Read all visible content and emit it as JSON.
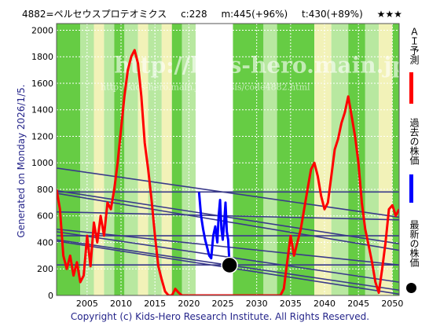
{
  "header": {
    "ticker": "4882=ペルセウスプロテオミクス",
    "current": "c:228",
    "max_forecast": "m:445(+96%)",
    "target": "t:430(+89%)",
    "stars": "★★★"
  },
  "side_label": "Generated on Monday 2026/1/5.",
  "watermark": {
    "url_big": "http://kids-hero.main.jp/",
    "url_small": "http://kids-hero.main.jp/analysis/code4882.html"
  },
  "footer": "Copyright (c) Kids-Hero Research Institute. All Rights Reserved.",
  "legend": {
    "ai_forecast": "ＡＩ予測",
    "past_price": "過去の株価",
    "latest_price": "最新の株価"
  },
  "colors": {
    "ai_forecast": "#ff0000",
    "past_price": "#0000ff",
    "latest_price": "#000000",
    "trend_lines": "#3a3a8a",
    "band_green": "#66cc44",
    "band_light_green": "#b8e8a0",
    "band_yellow": "#f2f2b8",
    "band_white": "#ffffff"
  },
  "chart_data": {
    "type": "line",
    "title": "",
    "xlabel": "",
    "ylabel": "",
    "xlim": [
      2000.5,
      2051
    ],
    "ylim": [
      0,
      2050
    ],
    "x_ticks": [
      2005,
      2010,
      2015,
      2020,
      2025,
      2030,
      2035,
      2040,
      2045,
      2050
    ],
    "y_ticks": [
      0,
      200,
      400,
      600,
      800,
      1000,
      1200,
      1400,
      1600,
      1800,
      2000
    ],
    "grid": true,
    "series": [
      {
        "role": "ai_forecast",
        "points": [
          [
            2000.5,
            800
          ],
          [
            2001,
            650
          ],
          [
            2001.5,
            300
          ],
          [
            2002,
            200
          ],
          [
            2002.5,
            300
          ],
          [
            2003,
            150
          ],
          [
            2003.5,
            250
          ],
          [
            2004,
            100
          ],
          [
            2004.5,
            150
          ],
          [
            2005,
            450
          ],
          [
            2005.5,
            220
          ],
          [
            2006,
            550
          ],
          [
            2006.5,
            400
          ],
          [
            2007,
            600
          ],
          [
            2007.5,
            450
          ],
          [
            2008,
            700
          ],
          [
            2008.5,
            650
          ],
          [
            2009,
            800
          ],
          [
            2009.5,
            1000
          ],
          [
            2010,
            1250
          ],
          [
            2010.5,
            1500
          ],
          [
            2011,
            1700
          ],
          [
            2011.5,
            1800
          ],
          [
            2012,
            1850
          ],
          [
            2012.5,
            1750
          ],
          [
            2013,
            1500
          ],
          [
            2013.5,
            1150
          ],
          [
            2014,
            950
          ],
          [
            2014.5,
            720
          ],
          [
            2015,
            450
          ],
          [
            2015.5,
            220
          ],
          [
            2016,
            120
          ],
          [
            2016.5,
            30
          ],
          [
            2017,
            0
          ],
          [
            2017.5,
            0
          ],
          [
            2018,
            50
          ],
          [
            2018.5,
            20
          ],
          [
            2019,
            0
          ],
          [
            2019.5,
            0
          ],
          [
            2020,
            0
          ],
          [
            2020.5,
            0
          ],
          [
            2021,
            0
          ],
          [
            2021.5,
            0
          ],
          [
            2022,
            0
          ],
          [
            2022.5,
            0
          ],
          [
            2023,
            0
          ],
          [
            2023.5,
            0
          ],
          [
            2024,
            0
          ],
          [
            2024.5,
            0
          ],
          [
            2025,
            0
          ],
          [
            2025.5,
            0
          ],
          [
            2026,
            0
          ],
          [
            2026.5,
            0
          ],
          [
            2027,
            0
          ],
          [
            2027.5,
            0
          ],
          [
            2028,
            0
          ],
          [
            2028.5,
            0
          ],
          [
            2029,
            0
          ],
          [
            2029.5,
            0
          ],
          [
            2030,
            0
          ],
          [
            2030.5,
            0
          ],
          [
            2031,
            0
          ],
          [
            2031.5,
            0
          ],
          [
            2032,
            0
          ],
          [
            2032.5,
            0
          ],
          [
            2033,
            0
          ],
          [
            2033.5,
            0
          ],
          [
            2034,
            50
          ],
          [
            2034.5,
            250
          ],
          [
            2035,
            450
          ],
          [
            2035.5,
            300
          ],
          [
            2036,
            400
          ],
          [
            2036.5,
            500
          ],
          [
            2037,
            650
          ],
          [
            2037.5,
            800
          ],
          [
            2038,
            950
          ],
          [
            2038.5,
            1000
          ],
          [
            2039,
            900
          ],
          [
            2039.5,
            750
          ],
          [
            2040,
            650
          ],
          [
            2040.5,
            700
          ],
          [
            2041,
            900
          ],
          [
            2041.5,
            1100
          ],
          [
            2042,
            1180
          ],
          [
            2042.5,
            1300
          ],
          [
            2043,
            1380
          ],
          [
            2043.5,
            1500
          ],
          [
            2044,
            1350
          ],
          [
            2044.5,
            1200
          ],
          [
            2045,
            1000
          ],
          [
            2045.5,
            700
          ],
          [
            2046,
            500
          ],
          [
            2046.5,
            380
          ],
          [
            2047,
            250
          ],
          [
            2047.5,
            100
          ],
          [
            2048,
            20
          ],
          [
            2048.5,
            200
          ],
          [
            2049,
            400
          ],
          [
            2049.5,
            650
          ],
          [
            2050,
            680
          ],
          [
            2050.5,
            600
          ],
          [
            2051,
            650
          ]
        ]
      },
      {
        "role": "past_price",
        "points": [
          [
            2021.5,
            780
          ],
          [
            2021.8,
            600
          ],
          [
            2022.1,
            500
          ],
          [
            2022.4,
            420
          ],
          [
            2022.7,
            360
          ],
          [
            2023,
            300
          ],
          [
            2023.3,
            280
          ],
          [
            2023.6,
            450
          ],
          [
            2023.9,
            520
          ],
          [
            2024.2,
            400
          ],
          [
            2024.4,
            600
          ],
          [
            2024.6,
            720
          ],
          [
            2024.8,
            500
          ],
          [
            2025,
            420
          ],
          [
            2025.2,
            550
          ],
          [
            2025.4,
            700
          ],
          [
            2025.6,
            480
          ],
          [
            2025.8,
            420
          ],
          [
            2026,
            228
          ]
        ]
      }
    ],
    "latest_point": {
      "x": 2026.0,
      "y": 228
    },
    "trend_lines": [
      {
        "from": [
          2000.5,
          410
        ],
        "to": [
          2051,
          10
        ]
      },
      {
        "from": [
          2000.5,
          420
        ],
        "to": [
          2051,
          40
        ]
      },
      {
        "from": [
          2000.5,
          480
        ],
        "to": [
          2051,
          100
        ]
      },
      {
        "from": [
          2000.5,
          500
        ],
        "to": [
          2051,
          230
        ]
      },
      {
        "from": [
          2000.5,
          770
        ],
        "to": [
          2051,
          340
        ]
      },
      {
        "from": [
          2000.5,
          790
        ],
        "to": [
          2051,
          390
        ]
      },
      {
        "from": [
          2000.5,
          630
        ],
        "to": [
          2051,
          570
        ]
      },
      {
        "from": [
          2000.5,
          960
        ],
        "to": [
          2051,
          590
        ]
      },
      {
        "from": [
          2000.5,
          450
        ],
        "to": [
          2051,
          450
        ]
      },
      {
        "from": [
          2000.5,
          230
        ],
        "to": [
          2051,
          230
        ]
      },
      {
        "from": [
          2000.5,
          780
        ],
        "to": [
          2051,
          780
        ]
      }
    ],
    "bands": [
      {
        "from": 2000.5,
        "to": 2004,
        "color": "band_green"
      },
      {
        "from": 2004,
        "to": 2006,
        "color": "band_light_green"
      },
      {
        "from": 2006,
        "to": 2007.5,
        "color": "band_yellow"
      },
      {
        "from": 2007.5,
        "to": 2009,
        "color": "band_light_green"
      },
      {
        "from": 2009,
        "to": 2010.5,
        "color": "band_green"
      },
      {
        "from": 2010.5,
        "to": 2012.5,
        "color": "band_light_green"
      },
      {
        "from": 2012.5,
        "to": 2014,
        "color": "band_yellow"
      },
      {
        "from": 2014,
        "to": 2016,
        "color": "band_light_green"
      },
      {
        "from": 2016,
        "to": 2017.5,
        "color": "band_yellow"
      },
      {
        "from": 2017.5,
        "to": 2019,
        "color": "band_green"
      },
      {
        "from": 2019,
        "to": 2021,
        "color": "band_light_green"
      },
      {
        "from": 2021,
        "to": 2026.5,
        "color": "band_white"
      },
      {
        "from": 2026.5,
        "to": 2031,
        "color": "band_green"
      },
      {
        "from": 2031,
        "to": 2033,
        "color": "band_light_green"
      },
      {
        "from": 2033,
        "to": 2038.5,
        "color": "band_green"
      },
      {
        "from": 2038.5,
        "to": 2041,
        "color": "band_yellow"
      },
      {
        "from": 2041,
        "to": 2043.5,
        "color": "band_light_green"
      },
      {
        "from": 2043.5,
        "to": 2046,
        "color": "band_green"
      },
      {
        "from": 2046,
        "to": 2048,
        "color": "band_light_green"
      },
      {
        "from": 2048,
        "to": 2050,
        "color": "band_yellow"
      },
      {
        "from": 2050,
        "to": 2051,
        "color": "band_green"
      }
    ]
  }
}
